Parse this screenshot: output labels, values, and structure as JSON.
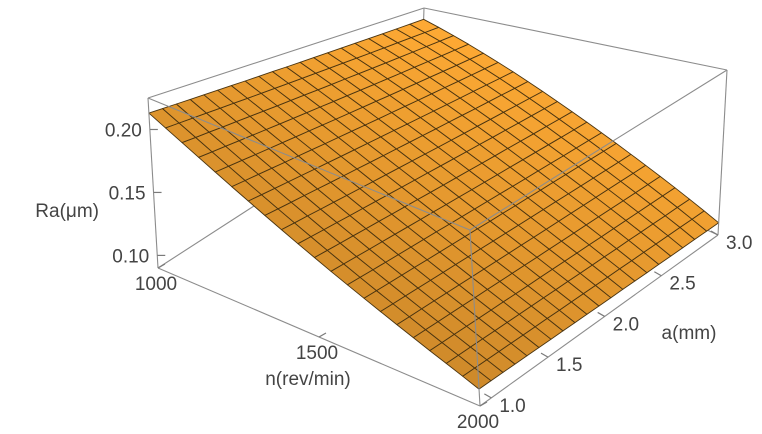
{
  "chart_data": {
    "type": "surface3d",
    "title": "",
    "x_axis": {
      "label": "n(rev/min)",
      "range": [
        1000,
        2000
      ],
      "ticks": [
        {
          "value": 1000,
          "label": "1000"
        },
        {
          "value": 1500,
          "label": "1500"
        },
        {
          "value": 2000,
          "label": "2000"
        }
      ]
    },
    "y_axis": {
      "label": "a(mm)",
      "range": [
        0.9,
        3.0
      ],
      "ticks": [
        {
          "value": 1.0,
          "label": "1.0"
        },
        {
          "value": 1.5,
          "label": "1.5"
        },
        {
          "value": 2.0,
          "label": "2.0"
        },
        {
          "value": 2.5,
          "label": "2.5"
        },
        {
          "value": 3.0,
          "label": "3.0"
        }
      ]
    },
    "z_axis": {
      "label": "Ra(μm)",
      "range": [
        0.09,
        0.225
      ],
      "ticks": [
        {
          "value": 0.1,
          "label": "0.10"
        },
        {
          "value": 0.15,
          "label": "0.15"
        },
        {
          "value": 0.2,
          "label": "0.20"
        }
      ]
    },
    "surface": {
      "color": "#F6A432",
      "mesh_color": "#4a3410",
      "mesh_divisions": [
        20,
        20
      ],
      "corner_values": [
        {
          "n": 1000,
          "a": 0.9,
          "Ra": 0.213
        },
        {
          "n": 1000,
          "a": 3.0,
          "Ra": 0.208
        },
        {
          "n": 2000,
          "a": 0.9,
          "Ra": 0.103
        },
        {
          "n": 2000,
          "a": 3.0,
          "Ra": 0.1
        }
      ]
    },
    "box": {
      "show": true,
      "color": "#8c8c8c"
    }
  }
}
